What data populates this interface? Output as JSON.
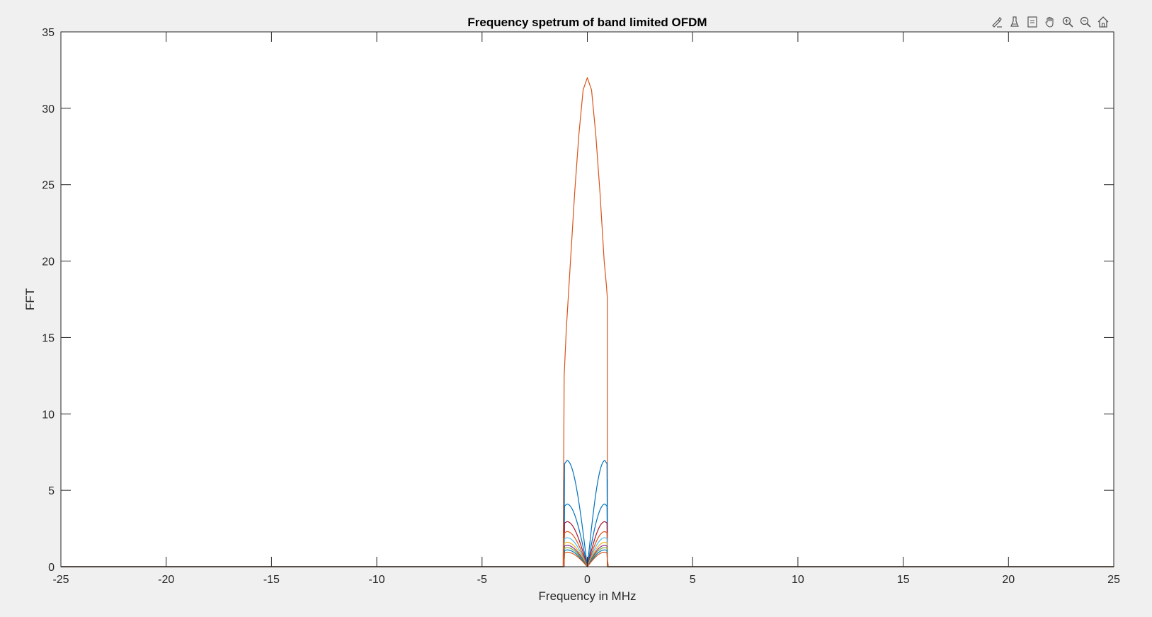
{
  "toolbar": {
    "buttons": [
      {
        "name": "brush-icon"
      },
      {
        "name": "data-cursor-icon"
      },
      {
        "name": "legend-icon"
      },
      {
        "name": "pan-hand-icon"
      },
      {
        "name": "zoom-in-icon"
      },
      {
        "name": "zoom-out-icon"
      },
      {
        "name": "home-icon"
      }
    ]
  },
  "chart_data": {
    "type": "line",
    "title": "Frequency spetrum of band limited OFDM",
    "xlabel": "Frequency in MHz",
    "ylabel": "FFT",
    "xlim": [
      -25,
      25
    ],
    "ylim": [
      0,
      35
    ],
    "xticks": [
      -25,
      -20,
      -15,
      -10,
      -5,
      0,
      5,
      10,
      15,
      20,
      25
    ],
    "yticks": [
      0,
      5,
      10,
      15,
      20,
      25,
      30,
      35
    ],
    "grid": false,
    "colors": {
      "blue": "#0072BD",
      "orange": "#D95319",
      "yellow": "#EDB120",
      "purple": "#7E2F8E",
      "green": "#77AC30",
      "cyan": "#4DBEEE",
      "red": "#A2142F"
    },
    "series": [
      {
        "color": "#D95319",
        "kind": "main",
        "x": [
          -25,
          -1.15,
          -1.1,
          -1.0,
          -0.8,
          -0.6,
          -0.4,
          -0.2,
          0,
          0.2,
          0.4,
          0.6,
          0.8,
          0.9,
          0.95,
          0.95,
          1.0,
          25
        ],
        "y": [
          0,
          0,
          12.5,
          15.5,
          20,
          24.5,
          28.3,
          31.2,
          32,
          31.2,
          28.3,
          24.5,
          20,
          18.5,
          17.6,
          0.5,
          0,
          0
        ]
      },
      {
        "color": "#0072BD",
        "kind": "lobe",
        "peak": 6.95
      },
      {
        "color": "#0072BD",
        "kind": "lobe",
        "peak": 4.1
      },
      {
        "color": "#A2142F",
        "kind": "lobe",
        "peak": 2.95
      },
      {
        "color": "#D95319",
        "kind": "lobe",
        "peak": 2.3
      },
      {
        "color": "#4DBEEE",
        "kind": "lobe",
        "peak": 1.9
      },
      {
        "color": "#EDB120",
        "kind": "lobe",
        "peak": 1.6
      },
      {
        "color": "#7E2F8E",
        "kind": "lobe",
        "peak": 1.4
      },
      {
        "color": "#77AC30",
        "kind": "lobe",
        "peak": 1.25
      },
      {
        "color": "#0072BD",
        "kind": "lobe",
        "peak": 1.1
      },
      {
        "color": "#D95319",
        "kind": "lobe",
        "peak": 0.95
      }
    ]
  }
}
